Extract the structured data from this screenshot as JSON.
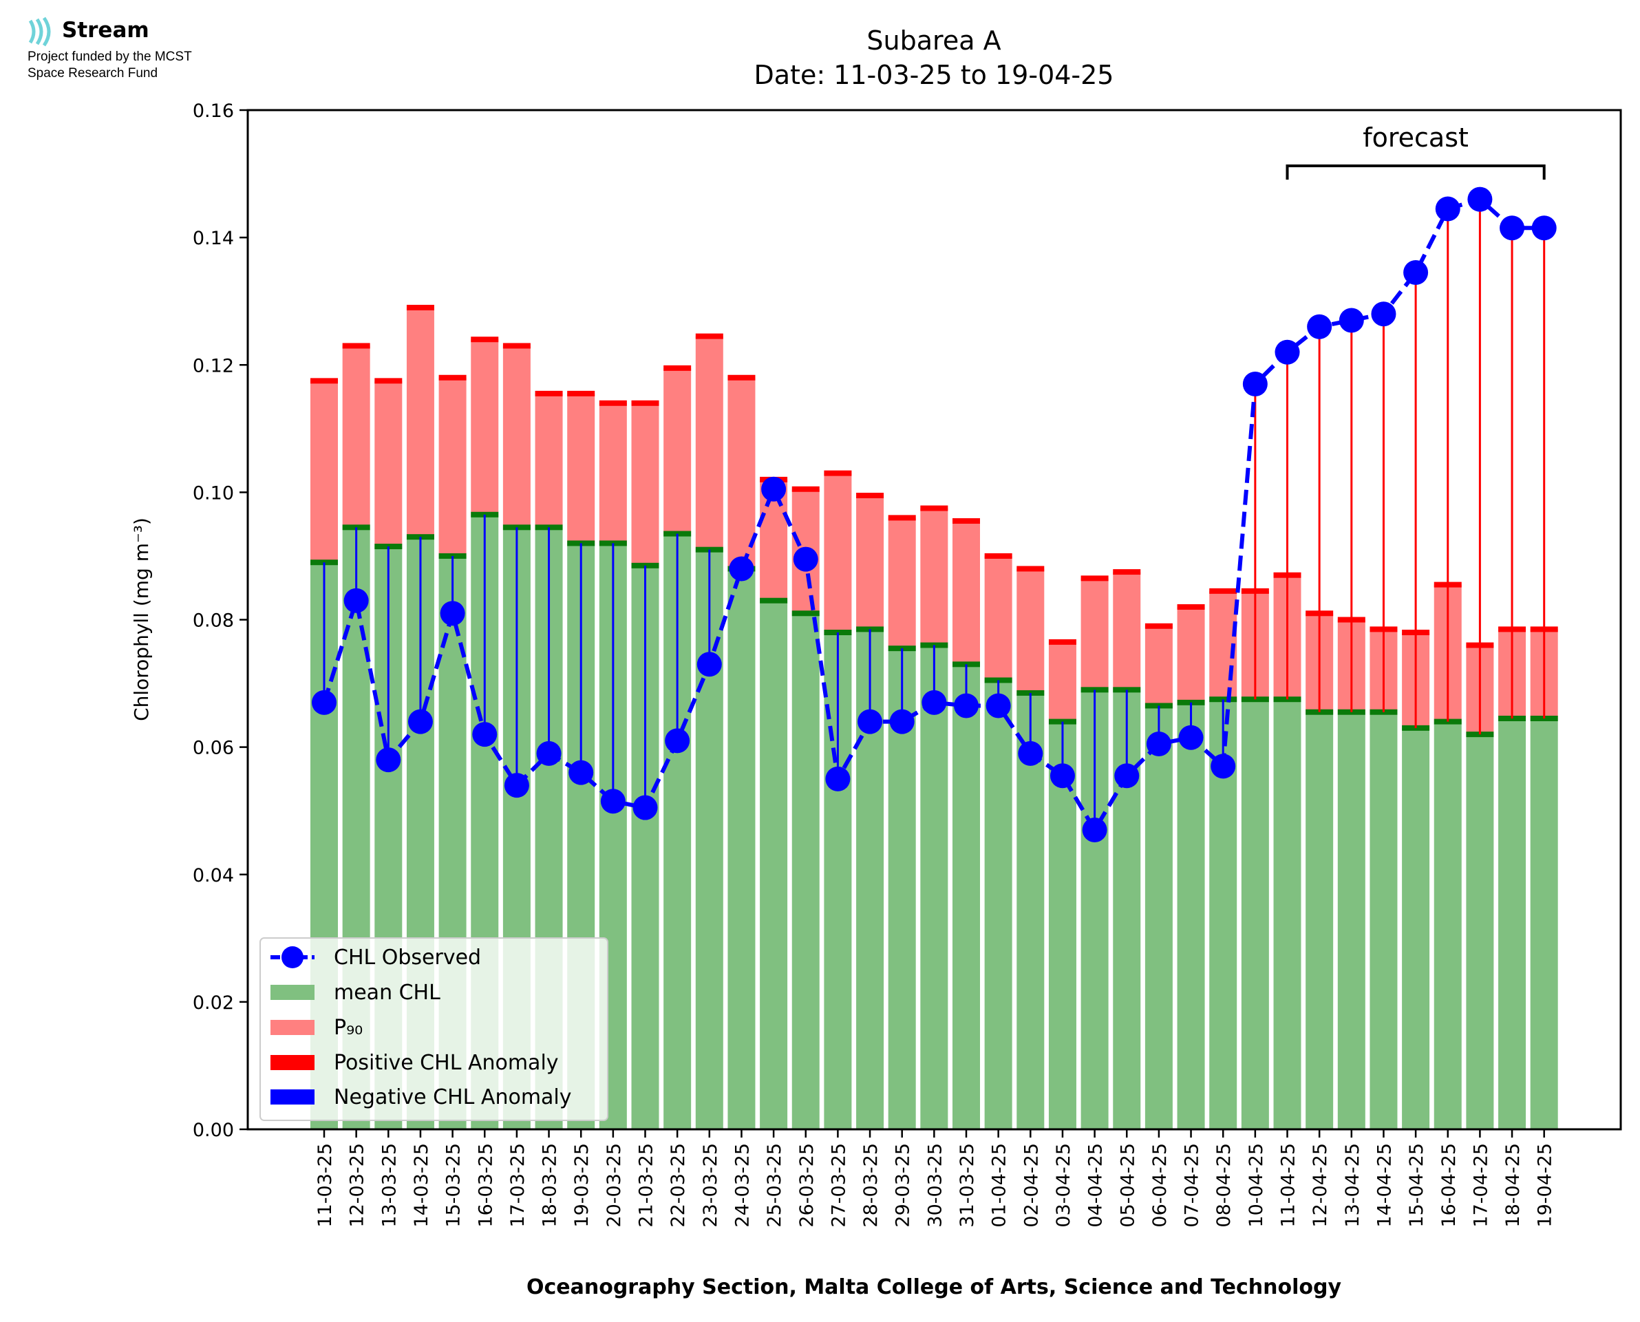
{
  "logo": {
    "name": "Stream",
    "line1": "Project funded by the MCST",
    "line2": "Space Research Fund",
    "icon": "stream-waves-icon",
    "icon_color": "#6fd3d9"
  },
  "chart_data": {
    "type": "bar",
    "title": "Subarea A",
    "subtitle": "Date: 11-03-25 to 19-04-25",
    "xlabel": "Oceanography Section, Malta College of Arts, Science and Technology",
    "ylabel": "Chlorophyll (mg m⁻³)",
    "ylim": [
      0,
      0.16
    ],
    "yticks": [
      "0.00",
      "0.02",
      "0.04",
      "0.06",
      "0.08",
      "0.10",
      "0.12",
      "0.14",
      "0.16"
    ],
    "grid": false,
    "legend_position": "lower-left",
    "forecast_label": "forecast",
    "forecast_range": [
      "11-04-25",
      "19-04-25"
    ],
    "colors": {
      "mean": "#80c080",
      "mean_cap": "#0a7a0a",
      "p90": "#ff8080",
      "p90_cap": "#ff0000",
      "observed": "#0000ff",
      "positive_anomaly": "#ff0000",
      "negative_anomaly": "#0000ff"
    },
    "categories": [
      "11-03-25",
      "12-03-25",
      "13-03-25",
      "14-03-25",
      "15-03-25",
      "16-03-25",
      "17-03-25",
      "18-03-25",
      "19-03-25",
      "20-03-25",
      "21-03-25",
      "22-03-25",
      "23-03-25",
      "24-03-25",
      "25-03-25",
      "26-03-25",
      "27-03-25",
      "28-03-25",
      "29-03-25",
      "30-03-25",
      "31-03-25",
      "01-04-25",
      "02-04-25",
      "03-04-25",
      "04-04-25",
      "05-04-25",
      "06-04-25",
      "07-04-25",
      "08-04-25",
      "10-04-25",
      "11-04-25",
      "12-04-25",
      "13-04-25",
      "14-04-25",
      "15-04-25",
      "16-04-25",
      "17-04-25",
      "18-04-25",
      "19-04-25"
    ],
    "series": [
      {
        "name": "CHL Observed",
        "values": [
          0.067,
          0.083,
          0.058,
          0.064,
          0.081,
          0.062,
          0.054,
          0.059,
          0.056,
          0.0515,
          0.0505,
          0.061,
          0.073,
          0.088,
          0.1005,
          0.0895,
          0.055,
          0.064,
          0.064,
          0.067,
          0.0665,
          0.0665,
          0.059,
          0.0555,
          0.047,
          0.0555,
          0.0605,
          0.0615,
          0.057,
          0.117,
          0.122,
          0.126,
          0.127,
          0.128,
          0.1345,
          0.1445,
          0.146,
          0.1415,
          0.1415
        ]
      },
      {
        "name": "mean CHL",
        "values": [
          0.089,
          0.0945,
          0.0915,
          0.093,
          0.09,
          0.0965,
          0.0945,
          0.0945,
          0.092,
          0.092,
          0.0885,
          0.0935,
          0.091,
          0.088,
          0.083,
          0.081,
          0.078,
          0.0785,
          0.0755,
          0.076,
          0.073,
          0.0705,
          0.0685,
          0.064,
          0.069,
          0.069,
          0.0665,
          0.067,
          0.0675,
          0.0675,
          0.0675,
          0.0655,
          0.0655,
          0.0655,
          0.063,
          0.064,
          0.062,
          0.0645,
          0.0645
        ]
      },
      {
        "name": "P₉₀",
        "values": [
          0.1175,
          0.123,
          0.1175,
          0.129,
          0.118,
          0.124,
          0.123,
          0.1155,
          0.1155,
          0.114,
          0.114,
          0.1195,
          0.1245,
          0.118,
          0.102,
          0.1005,
          0.103,
          0.0995,
          0.096,
          0.0975,
          0.0955,
          0.09,
          0.088,
          0.0765,
          0.0865,
          0.0875,
          0.079,
          0.082,
          0.0845,
          0.0845,
          0.087,
          0.081,
          0.08,
          0.0785,
          0.078,
          0.0855,
          0.076,
          0.0785,
          0.0785
        ]
      }
    ],
    "legend": [
      "CHL Observed",
      "mean CHL",
      "P₉₀",
      "Positive CHL Anomaly",
      "Negative CHL Anomaly"
    ]
  }
}
